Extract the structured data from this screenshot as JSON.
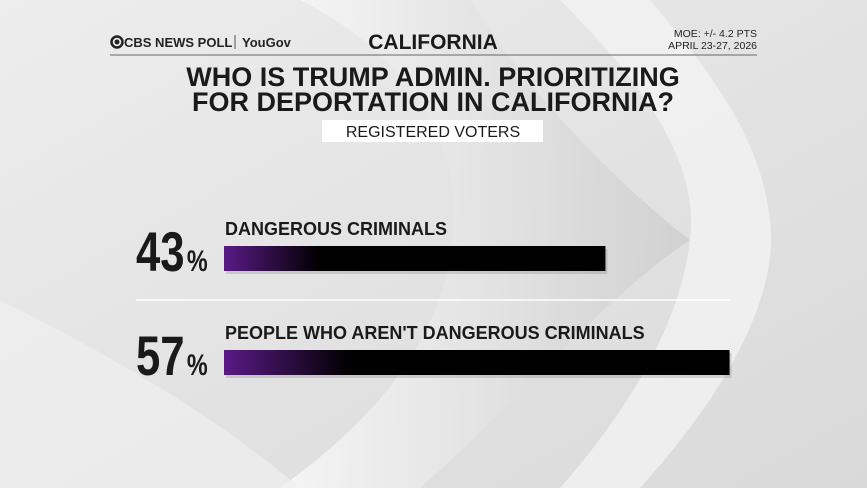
{
  "chart_data": {
    "type": "bar",
    "source": "CBS NEWS POLL",
    "partner": "YouGov",
    "location": "CALIFORNIA",
    "moe": "MOE: +/- 4.2 PTS",
    "dates": "APRIL 23-27, 2026",
    "title": [
      "WHO IS TRUMP ADMIN. PRIORITIZING",
      "FOR DEPORTATION IN CALIFORNIA?"
    ],
    "subtitle": "REGISTERED VOTERS",
    "categories": [
      "DANGEROUS CRIMINALS",
      "PEOPLE WHO AREN'T DANGEROUS CRIMINALS"
    ],
    "values": [
      43,
      57
    ],
    "value_labels": [
      "43%",
      "57%"
    ],
    "color": "#8e4bb5"
  }
}
